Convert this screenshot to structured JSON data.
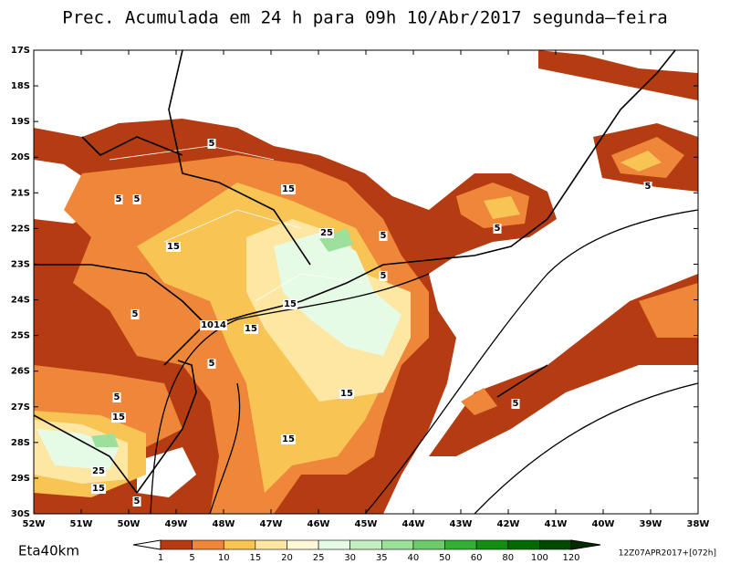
{
  "title": "Prec. Acumulada em 24 h para 09h 10/Abr/2017 segunda–feira",
  "map": {
    "lat_labels": [
      "17S",
      "18S",
      "19S",
      "20S",
      "21S",
      "22S",
      "23S",
      "24S",
      "25S",
      "26S",
      "27S",
      "28S",
      "29S",
      "30S"
    ],
    "lon_labels": [
      "52W",
      "51W",
      "50W",
      "49W",
      "48W",
      "47W",
      "46W",
      "45W",
      "44W",
      "43W",
      "42W",
      "41W",
      "40W",
      "39W",
      "38W"
    ],
    "contour_labels": [
      "5",
      "5",
      "5",
      "15",
      "15",
      "25",
      "5",
      "5",
      "5",
      "15",
      "15",
      "1014",
      "5",
      "5",
      "15",
      "5",
      "5",
      "15",
      "15",
      "25",
      "15",
      "5",
      "5"
    ]
  },
  "model": "Eta40km",
  "run": "12Z07APR2017+[072h]",
  "colorbar": {
    "labels": [
      "1",
      "5",
      "10",
      "15",
      "20",
      "25",
      "30",
      "35",
      "40",
      "50",
      "60",
      "80",
      "100",
      "120"
    ],
    "colors": [
      "#ffffff",
      "#b53c12",
      "#ef873a",
      "#f8c453",
      "#fde7a3",
      "#fff7d9",
      "#e6fbe6",
      "#c3efc3",
      "#9ce09c",
      "#6ccb6c",
      "#34ae34",
      "#138e13",
      "#006900",
      "#004a00",
      "#002d00"
    ]
  }
}
